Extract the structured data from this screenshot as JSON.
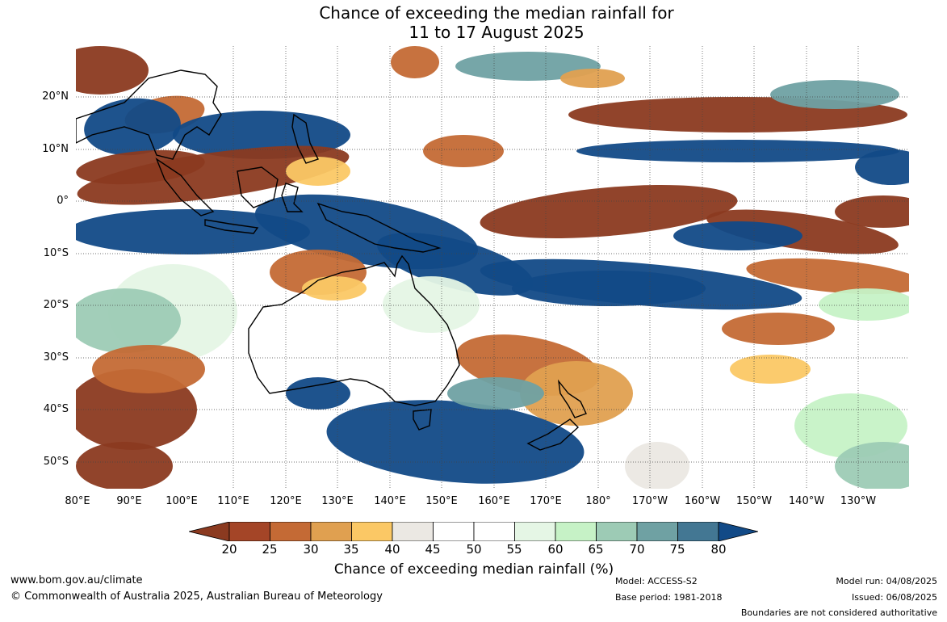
{
  "title": {
    "line1": "Chance of exceeding the median rainfall for",
    "line2": "11 to 17 August 2025"
  },
  "map": {
    "lat_labels": [
      "20°N",
      "10°N",
      "0°",
      "10°S",
      "20°S",
      "30°S",
      "40°S",
      "50°S"
    ],
    "lon_labels": [
      "80°E",
      "90°E",
      "100°E",
      "110°E",
      "120°E",
      "130°E",
      "140°E",
      "150°E",
      "160°E",
      "170°E",
      "180°",
      "170°W",
      "160°W",
      "150°W",
      "140°W",
      "130°W"
    ],
    "colors": {
      "dry_strong": "#8b3a20",
      "dry": "#c46a35",
      "dry_mild": "#e0a050",
      "dry_light": "#fbc865",
      "neutral": "#ebe8e3",
      "white": "#ffffff",
      "wet_light": "#e5f6e5",
      "wet_mild": "#c6f2c6",
      "wet": "#9dcbb5",
      "wet_more": "#6fa1a3",
      "wet_strong": "#437793",
      "wet_extreme": "#124a87"
    }
  },
  "colorbar": {
    "ticks": [
      "20",
      "25",
      "30",
      "35",
      "40",
      "45",
      "50",
      "55",
      "60",
      "65",
      "70",
      "75",
      "80"
    ],
    "label": "Chance of exceeding median rainfall (%)",
    "colors": [
      "#8b3a20",
      "#a44527",
      "#c46a35",
      "#e0a050",
      "#fbc865",
      "#ebe8e3",
      "#ffffff",
      "#ffffff",
      "#e5f6e5",
      "#c6f2c6",
      "#9dcbb5",
      "#6fa1a3",
      "#437793",
      "#124a87"
    ]
  },
  "footer": {
    "website": "www.bom.gov.au/climate",
    "copyright": "© Commonwealth of Australia 2025, Australian Bureau of Meteorology",
    "model": "Model: ACCESS-S2",
    "base_period": "Base period: 1981-2018",
    "model_run": "Model run: 04/08/2025",
    "issued": "Issued: 06/08/2025",
    "boundaries": "Boundaries are not considered authoritative"
  }
}
